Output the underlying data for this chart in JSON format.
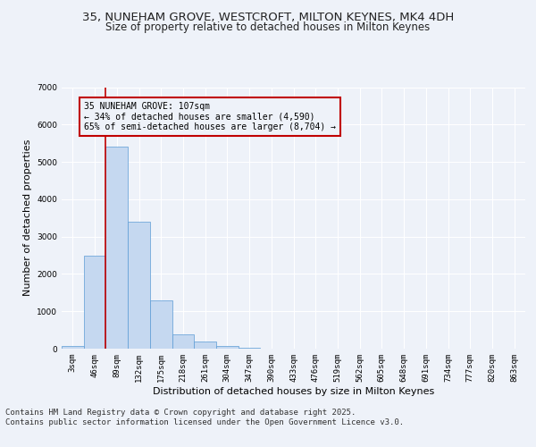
{
  "title_line1": "35, NUNEHAM GROVE, WESTCROFT, MILTON KEYNES, MK4 4DH",
  "title_line2": "Size of property relative to detached houses in Milton Keynes",
  "xlabel": "Distribution of detached houses by size in Milton Keynes",
  "ylabel": "Number of detached properties",
  "categories": [
    "3sqm",
    "46sqm",
    "89sqm",
    "132sqm",
    "175sqm",
    "218sqm",
    "261sqm",
    "304sqm",
    "347sqm",
    "390sqm",
    "433sqm",
    "476sqm",
    "519sqm",
    "562sqm",
    "605sqm",
    "648sqm",
    "691sqm",
    "734sqm",
    "777sqm",
    "820sqm",
    "863sqm"
  ],
  "values": [
    70,
    2500,
    5400,
    3400,
    1300,
    380,
    200,
    80,
    20,
    5,
    2,
    0,
    0,
    0,
    0,
    0,
    0,
    0,
    0,
    0,
    0
  ],
  "bar_color": "#c5d8f0",
  "bar_edge_color": "#5b9bd5",
  "vline_x_index": 2,
  "vline_color": "#c00000",
  "annotation_text": "35 NUNEHAM GROVE: 107sqm\n← 34% of detached houses are smaller (4,590)\n65% of semi-detached houses are larger (8,704) →",
  "annotation_box_color": "#c00000",
  "ylim": [
    0,
    7000
  ],
  "yticks": [
    0,
    1000,
    2000,
    3000,
    4000,
    5000,
    6000,
    7000
  ],
  "background_color": "#eef2f9",
  "grid_color": "#ffffff",
  "footer": "Contains HM Land Registry data © Crown copyright and database right 2025.\nContains public sector information licensed under the Open Government Licence v3.0.",
  "title_fontsize": 9.5,
  "subtitle_fontsize": 8.5,
  "label_fontsize": 8,
  "tick_fontsize": 6.5,
  "footer_fontsize": 6.5,
  "ann_fontsize": 7
}
